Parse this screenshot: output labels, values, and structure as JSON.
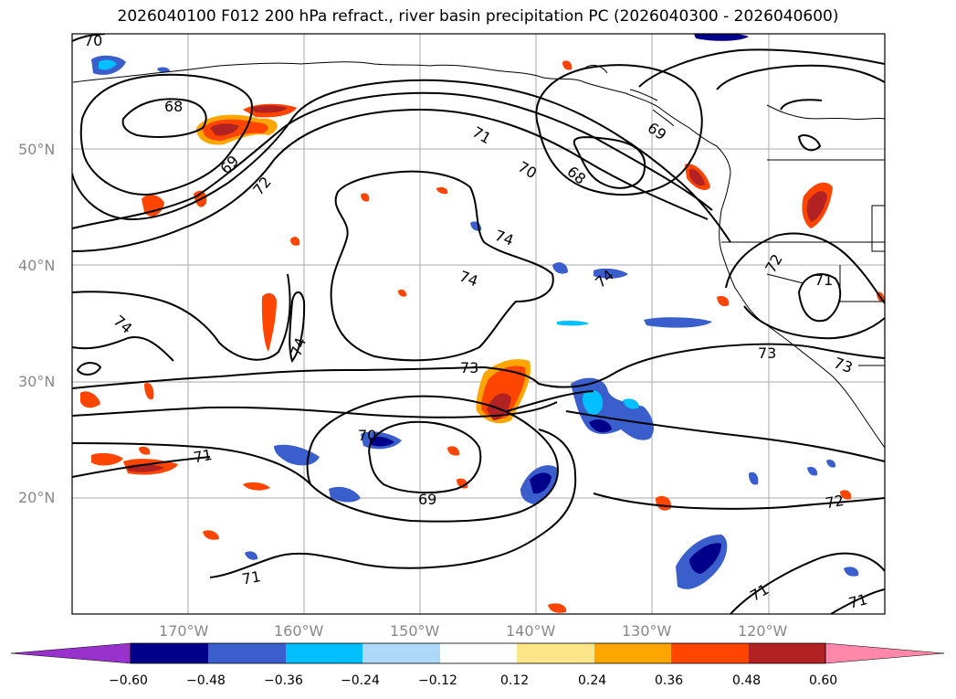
{
  "title": "2026040100 F012 200 hPa refract., river basin precipitation PC (2026040300 - 2026040600)",
  "lat_labels": [
    "50°N",
    "40°N",
    "30°N",
    "20°N"
  ],
  "lon_labels": [
    "170°W",
    "160°W",
    "150°W",
    "140°W",
    "130°W",
    "120°W"
  ],
  "contour_labels": [
    "70",
    "68",
    "69",
    "72",
    "71",
    "70",
    "68",
    "69",
    "74",
    "74",
    "74",
    "74",
    "74",
    "73",
    "70",
    "71",
    "69",
    "71",
    "72",
    "71",
    "71",
    "72",
    "71",
    "73",
    "73"
  ],
  "colorbar": {
    "ticks": [
      "−0.60",
      "−0.48",
      "−0.36",
      "−0.24",
      "−0.12",
      "0.12",
      "0.24",
      "0.36",
      "0.48",
      "0.60"
    ],
    "colors": [
      "#9932cc",
      "#00008b",
      "#3a5fcd",
      "#00bfff",
      "#add8f8",
      "#ffffff",
      "#fde68a",
      "#ffa500",
      "#ff4500",
      "#b22222",
      "#ff88aa"
    ]
  }
}
